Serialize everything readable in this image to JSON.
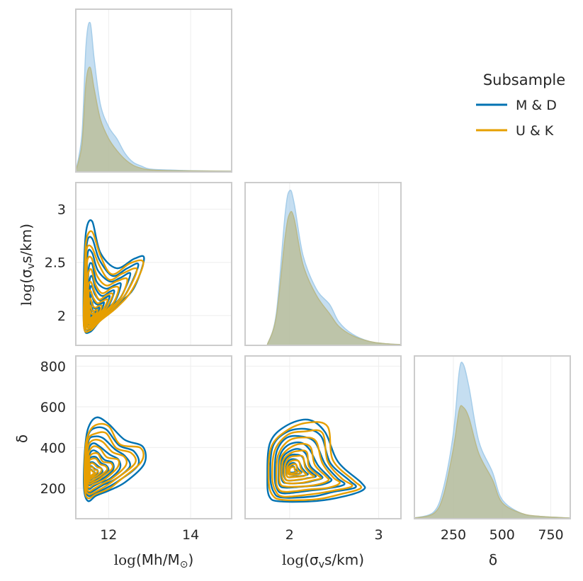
{
  "chart_data": {
    "type": "pairplot",
    "layout": "lower-triangle corner plot (3x3)",
    "variables": [
      "log(Mh/M⊙)",
      "log(σvs/km)",
      "δ"
    ],
    "legend": {
      "title": "Subsample",
      "entries": [
        {
          "label": "M & D",
          "color": "#0072b2"
        },
        {
          "label": "U & K",
          "color": "#e69f00"
        }
      ]
    },
    "colors": {
      "md": "#0072b2",
      "uk": "#e69f00",
      "md_fill": "#a6cde9",
      "uk_fill": "#b9b98a",
      "frame": "#cccccc",
      "grid": "#eeeeee"
    },
    "axes": {
      "mh": {
        "label": "log(Mh/M⊙)",
        "label_prefix": "log",
        "label_text": "(Mh/M",
        "label_sub": "⊙",
        "label_close": ")",
        "range": [
          11.2,
          15.0
        ],
        "ticks": [
          12,
          14
        ],
        "tick_labels": [
          "12",
          "14"
        ]
      },
      "sig": {
        "label": "log(σvs/km)",
        "label_prefix": "log",
        "label_text": "(σ",
        "label_sub": "v",
        "label_close": "s/km)",
        "range": [
          1.72,
          3.25
        ],
        "ticks": [
          2,
          2.5,
          3
        ],
        "tick_labels": [
          "2",
          "2.5",
          "3"
        ]
      },
      "sig_x": {
        "range": [
          1.5,
          3.25
        ],
        "ticks": [
          2,
          3
        ],
        "tick_labels": [
          "2",
          "3"
        ]
      },
      "delta": {
        "label": "δ",
        "range": [
          50,
          850
        ],
        "ticks": [
          200,
          400,
          600,
          800
        ],
        "tick_labels": [
          "200",
          "400",
          "600",
          "800"
        ]
      },
      "delta_x": {
        "range": [
          50,
          850
        ],
        "ticks": [
          250,
          500,
          750
        ],
        "tick_labels": [
          "250",
          "500",
          "750"
        ]
      }
    },
    "diagonals": [
      {
        "variable": "log(Mh/M⊙)",
        "series": [
          {
            "name": "M & D",
            "x": [
              11.2,
              11.35,
              11.45,
              11.55,
              11.65,
              11.8,
              12.0,
              12.2,
              12.4,
              12.6,
              12.8,
              13.0,
              13.5,
              14.0,
              15.0
            ],
            "density": [
              0.0,
              0.25,
              0.85,
              1.0,
              0.75,
              0.45,
              0.3,
              0.22,
              0.12,
              0.06,
              0.035,
              0.015,
              0.008,
              0.004,
              0.0
            ]
          },
          {
            "name": "U & K",
            "x": [
              11.2,
              11.35,
              11.45,
              11.55,
              11.65,
              11.8,
              12.0,
              12.2,
              12.4,
              12.6,
              12.8,
              13.0,
              13.5,
              15.0
            ],
            "density": [
              0.0,
              0.18,
              0.6,
              0.7,
              0.55,
              0.35,
              0.22,
              0.14,
              0.08,
              0.04,
              0.02,
              0.01,
              0.004,
              0.0
            ]
          }
        ]
      },
      {
        "variable": "log(σvs/km)",
        "series": [
          {
            "name": "M & D",
            "x": [
              1.75,
              1.85,
              1.95,
              2.0,
              2.05,
              2.15,
              2.3,
              2.45,
              2.55,
              2.7,
              2.9,
              3.1,
              3.25
            ],
            "density": [
              0.0,
              0.2,
              0.85,
              1.0,
              0.92,
              0.58,
              0.36,
              0.26,
              0.15,
              0.07,
              0.02,
              0.005,
              0.0
            ]
          },
          {
            "name": "U & K",
            "x": [
              1.75,
              1.85,
              1.95,
              2.0,
              2.05,
              2.15,
              2.3,
              2.45,
              2.55,
              2.7,
              2.9,
              3.1,
              3.25
            ],
            "density": [
              0.0,
              0.18,
              0.7,
              0.85,
              0.82,
              0.52,
              0.32,
              0.2,
              0.12,
              0.06,
              0.02,
              0.005,
              0.0
            ]
          }
        ]
      },
      {
        "variable": "δ",
        "series": [
          {
            "name": "M & D",
            "x": [
              50,
              150,
              200,
              250,
              280,
              300,
              330,
              380,
              450,
              500,
              600,
              700,
              850
            ],
            "density": [
              0.0,
              0.04,
              0.2,
              0.55,
              0.95,
              1.0,
              0.85,
              0.5,
              0.3,
              0.12,
              0.03,
              0.01,
              0.0
            ]
          },
          {
            "name": "U & K",
            "x": [
              50,
              150,
              200,
              250,
              280,
              300,
              330,
              380,
              450,
              500,
              600,
              700,
              850
            ],
            "density": [
              0.0,
              0.03,
              0.15,
              0.45,
              0.7,
              0.72,
              0.65,
              0.42,
              0.25,
              0.1,
              0.03,
              0.01,
              0.0
            ]
          }
        ]
      }
    ],
    "kde_contours": {
      "levels": [
        1.0,
        0.85,
        0.7,
        0.55,
        0.42,
        0.32,
        0.22,
        0.14,
        0.08
      ],
      "panels": [
        {
          "x": "log(Mh/M⊙)",
          "y": "log(σvs/km)",
          "series": [
            {
              "name": "M & D",
              "center": [
                11.6,
                2.0
              ],
              "outer_boundary": [
                [
                  11.4,
                  1.9
                ],
                [
                  11.55,
                  1.85
                ],
                [
                  11.8,
                  1.95
                ],
                [
                  12.2,
                  2.1
                ],
                [
                  12.6,
                  2.25
                ],
                [
                  12.9,
                  2.55
                ],
                [
                  12.6,
                  2.52
                ],
                [
                  12.2,
                  2.45
                ],
                [
                  11.8,
                  2.6
                ],
                [
                  11.6,
                  2.86
                ],
                [
                  11.45,
                  2.82
                ],
                [
                  11.4,
                  2.4
                ]
              ]
            },
            {
              "name": "U & K",
              "center": [
                11.55,
                1.98
              ],
              "outer_boundary": [
                [
                  11.4,
                  1.9
                ],
                [
                  11.55,
                  1.86
                ],
                [
                  11.8,
                  1.95
                ],
                [
                  12.2,
                  2.08
                ],
                [
                  12.6,
                  2.25
                ],
                [
                  12.85,
                  2.5
                ],
                [
                  12.5,
                  2.48
                ],
                [
                  12.1,
                  2.4
                ],
                [
                  11.8,
                  2.55
                ],
                [
                  11.6,
                  2.78
                ],
                [
                  11.45,
                  2.72
                ],
                [
                  11.42,
                  2.35
                ]
              ]
            }
          ]
        },
        {
          "x": "log(Mh/M⊙)",
          "y": "δ",
          "series": [
            {
              "name": "M & D",
              "center": [
                11.55,
                270
              ],
              "outer_boundary": [
                [
                  11.4,
                  200
                ],
                [
                  11.5,
                  140
                ],
                [
                  11.7,
                  160
                ],
                [
                  12.0,
                  190
                ],
                [
                  12.4,
                  230
                ],
                [
                  12.9,
                  320
                ],
                [
                  12.8,
                  400
                ],
                [
                  12.4,
                  440
                ],
                [
                  12.0,
                  520
                ],
                [
                  11.7,
                  540
                ],
                [
                  11.5,
                  500
                ],
                [
                  11.42,
                  380
                ]
              ]
            },
            {
              "name": "U & K",
              "center": [
                11.55,
                270
              ],
              "outer_boundary": [
                [
                  11.42,
                  200
                ],
                [
                  11.5,
                  150
                ],
                [
                  11.7,
                  170
                ],
                [
                  12.0,
                  200
                ],
                [
                  12.3,
                  240
                ],
                [
                  12.8,
                  330
                ],
                [
                  12.75,
                  395
                ],
                [
                  12.3,
                  420
                ],
                [
                  12.0,
                  500
                ],
                [
                  11.7,
                  510
                ],
                [
                  11.5,
                  470
                ],
                [
                  11.43,
                  370
                ]
              ]
            }
          ]
        },
        {
          "x": "log(σvs/km)",
          "y": "δ",
          "series": [
            {
              "name": "M & D",
              "center": [
                2.02,
                290
              ],
              "outer_boundary": [
                [
                  1.75,
                  250
                ],
                [
                  1.78,
                  160
                ],
                [
                  1.9,
                  130
                ],
                [
                  2.3,
                  140
                ],
                [
                  2.6,
                  160
                ],
                [
                  2.85,
                  190
                ],
                [
                  2.78,
                  230
                ],
                [
                  2.55,
                  330
                ],
                [
                  2.4,
                  480
                ],
                [
                  2.2,
                  530
                ],
                [
                  1.95,
                  510
                ],
                [
                  1.78,
                  420
                ]
              ]
            },
            {
              "name": "U & K",
              "center": [
                2.02,
                285
              ],
              "outer_boundary": [
                [
                  1.77,
                  250
                ],
                [
                  1.8,
                  170
                ],
                [
                  1.92,
                  140
                ],
                [
                  2.3,
                  150
                ],
                [
                  2.6,
                  170
                ],
                [
                  2.8,
                  200
                ],
                [
                  2.7,
                  240
                ],
                [
                  2.5,
                  340
                ],
                [
                  2.42,
                  500
                ],
                [
                  2.2,
                  520
                ],
                [
                  1.97,
                  490
                ],
                [
                  1.8,
                  400
                ]
              ]
            }
          ]
        }
      ]
    }
  }
}
